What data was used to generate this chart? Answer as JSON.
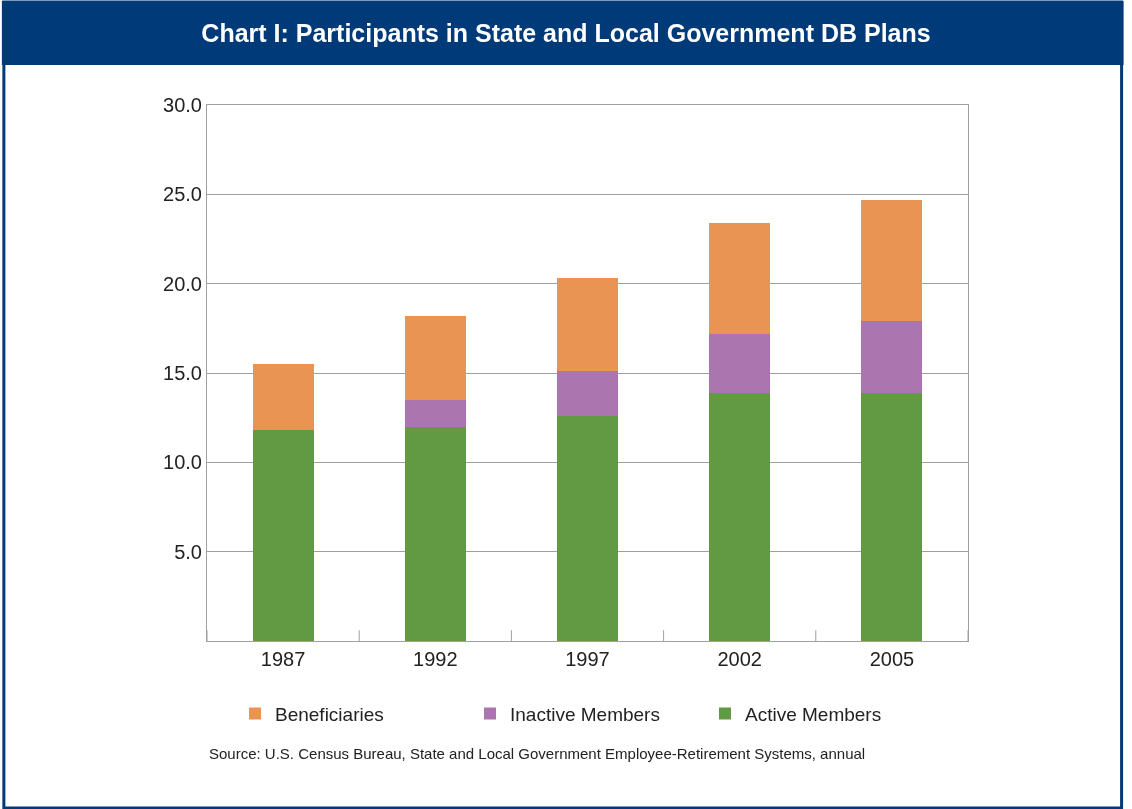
{
  "chart_data": {
    "type": "bar",
    "title": "Chart I: Participants in State and Local Government DB Plans",
    "categories": [
      "1987",
      "1992",
      "1997",
      "2002",
      "2005"
    ],
    "series": [
      {
        "name": "Active Members",
        "color": "#629a43",
        "values": [
          11.8,
          12.0,
          12.6,
          13.9,
          13.9
        ]
      },
      {
        "name": "Inactive Members",
        "color": "#ab76b0",
        "values": [
          null,
          1.5,
          2.5,
          3.3,
          4.0
        ]
      },
      {
        "name": "Beneficiaries",
        "color": "#e99452",
        "values": [
          3.7,
          4.7,
          5.2,
          6.2,
          6.8
        ]
      }
    ],
    "stacked": true,
    "ylim": [
      0,
      30
    ],
    "yticks": [
      {
        "value": 0,
        "label": null
      },
      {
        "value": 5,
        "label": "5.0"
      },
      {
        "value": 10,
        "label": "10.0"
      },
      {
        "value": 15,
        "label": "15.0"
      },
      {
        "value": 20,
        "label": "20.0"
      },
      {
        "value": 25,
        "label": "25.0"
      },
      {
        "value": 30,
        "label": "30.0"
      }
    ],
    "grid": "y",
    "legend": "bottom",
    "annotations": [
      "Source: U.S. Census Bureau, State and Local Government Employee-Retirement Systems, annual"
    ]
  }
}
